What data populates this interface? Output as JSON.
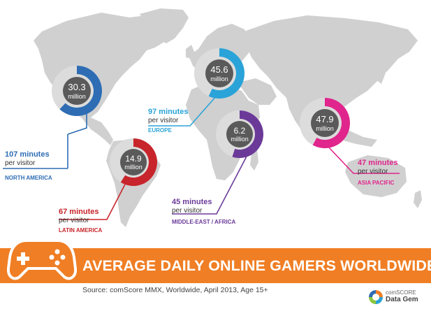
{
  "banner": {
    "title": "AVERAGE DAILY ONLINE GAMERS WORLDWIDE"
  },
  "footer": {
    "source": "Source: comScore MMX, Worldwide, April 2013, Age 15+",
    "brand_top": "comSCORE",
    "brand_bottom": "Data Gem"
  },
  "icons": [
    "game-controller-icon",
    "comscore-logo-icon",
    "world-map"
  ],
  "colors": {
    "north_america": "#2e6db4",
    "europe": "#2aa3d8",
    "latin_america": "#c8242b",
    "middle_east_africa": "#6b3a99",
    "asia_pacific": "#e0258c",
    "banner": "#f07e24",
    "map": "#d0d0d0",
    "donut_center": "#5a5a5a"
  },
  "chart_data": {
    "type": "pie",
    "title": "AVERAGE DAILY ONLINE GAMERS WORLDWIDE",
    "series": [
      {
        "region": "NORTH AMERICA",
        "value": "30.3",
        "unit": "million",
        "minutes": "107 minutes",
        "per": "per visitor",
        "fraction": 0.62
      },
      {
        "region": "EUROPE",
        "value": "45.6",
        "unit": "million",
        "minutes": "97 minutes",
        "per": "per visitor",
        "fraction": 0.57
      },
      {
        "region": "LATIN AMERICA",
        "value": "14.9",
        "unit": "million",
        "minutes": "67 minutes",
        "per": "per visitor",
        "fraction": 0.59
      },
      {
        "region": "MIDDLE-EAST / AFRICA",
        "value": "6.2",
        "unit": "million",
        "minutes": "45 minutes",
        "per": "per visitor",
        "fraction": 0.55
      },
      {
        "region": "ASIA PACIFIC",
        "value": "47.9",
        "unit": "million",
        "minutes": "47 minutes",
        "per": "per visitor",
        "fraction": 0.58
      }
    ]
  }
}
